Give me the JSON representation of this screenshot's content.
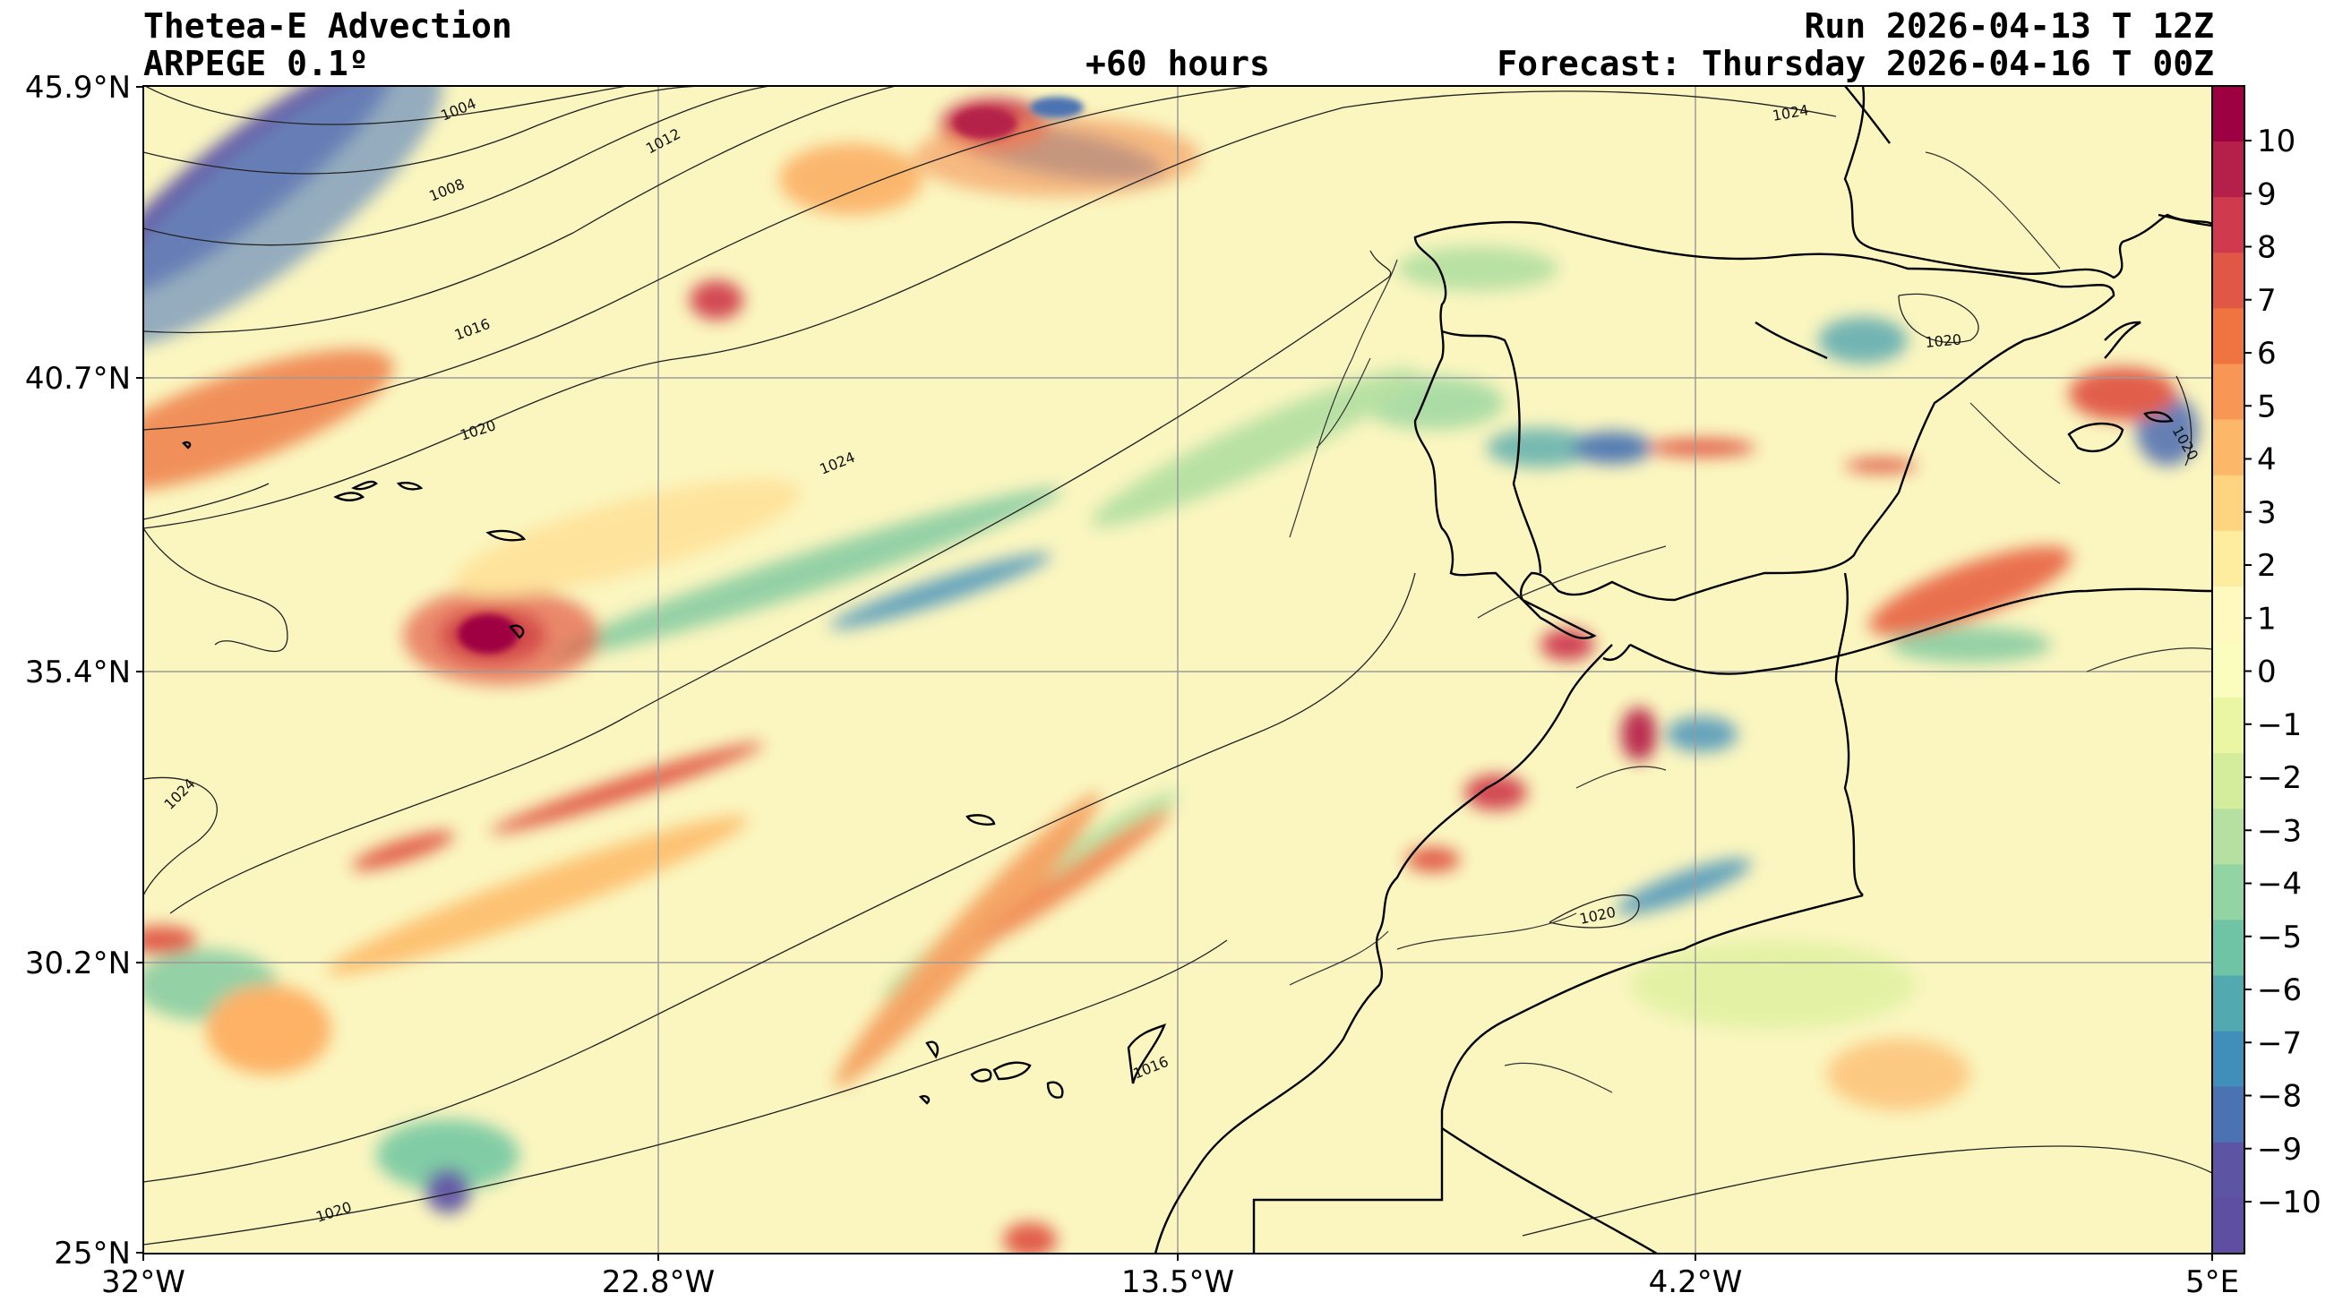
{
  "header": {
    "title": "Thetea-E Advection",
    "model": "ARPEGE 0.1º",
    "lead": "+60 hours",
    "run": "Run 2026-04-13 T 12Z",
    "forecast": "Forecast: Thursday 2026-04-16 T 00Z"
  },
  "axes": {
    "lat_labels": [
      "45.9°N",
      "40.7°N",
      "35.4°N",
      "30.2°N",
      "25°N"
    ],
    "lon_labels": [
      "32°W",
      "22.8°W",
      "13.5°W",
      "4.2°W",
      "5°E"
    ],
    "lat_range": [
      25,
      45.9
    ],
    "lon_range": [
      -32,
      5
    ],
    "grid": true
  },
  "colorbar": {
    "ticks": [
      "10",
      "9",
      "8",
      "7",
      "6",
      "5",
      "4",
      "3",
      "2",
      "1",
      "0",
      "−1",
      "−2",
      "−3",
      "−4",
      "−5",
      "−6",
      "−7",
      "−8",
      "−9",
      "−10"
    ],
    "colors": [
      "#9e0142",
      "#b5204a",
      "#cf3a4f",
      "#e05745",
      "#f0743f",
      "#f89656",
      "#fdb768",
      "#fed481",
      "#feec9f",
      "#fff9c0",
      "#fbfdbe",
      "#eaf6a2",
      "#d3ed9c",
      "#b5e0a2",
      "#93d4a4",
      "#6fc4a5",
      "#52aab0",
      "#3f8fba",
      "#4b72b2",
      "#5d55a4",
      "#5e4fa2"
    ]
  },
  "isobars": {
    "labels": [
      "1004",
      "1008",
      "1012",
      "1016",
      "1020",
      "1024",
      "1024",
      "1024",
      "1020",
      "1020",
      "1020",
      "1016",
      "1020"
    ]
  }
}
